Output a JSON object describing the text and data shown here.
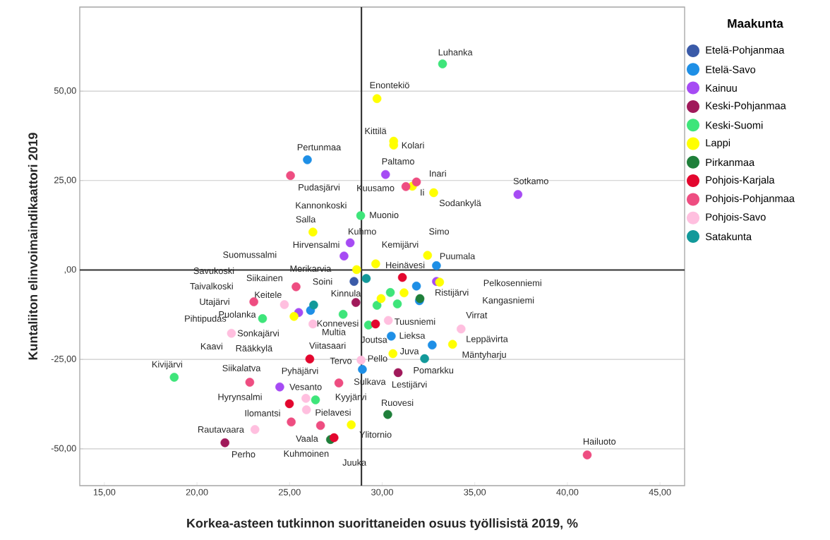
{
  "chart_data": {
    "type": "scatter",
    "xlabel": "Korkea-asteen tutkinnon suorittaneiden osuus työllisistä 2019, %",
    "ylabel": "Kuntaliiton elinvoimaindikaattori 2019",
    "legend_title": "Maakunta",
    "legend": "right",
    "marker": "circle",
    "grid": "y",
    "xlim": [
      13.67,
      46.33
    ],
    "ylim": [
      -60.3,
      73.5
    ],
    "xticks": [
      {
        "value": 15,
        "label": "15,00"
      },
      {
        "value": 20,
        "label": "20,00"
      },
      {
        "value": 25,
        "label": "25,00"
      },
      {
        "value": 30,
        "label": "30,00"
      },
      {
        "value": 35,
        "label": "35,00"
      },
      {
        "value": 40,
        "label": "40,00"
      },
      {
        "value": 45,
        "label": "45,00"
      }
    ],
    "yticks": [
      {
        "value": -50,
        "label": "-50,00"
      },
      {
        "value": -25,
        "label": "-25,00"
      },
      {
        "value": 0,
        "label": ",00"
      },
      {
        "value": 25,
        "label": "25,00"
      },
      {
        "value": 50,
        "label": "50,00"
      }
    ],
    "ref_lines": [
      {
        "axis": "x",
        "value": 28.88,
        "color": "#333333"
      },
      {
        "axis": "y",
        "value": 0,
        "color": "#333333"
      }
    ],
    "series": [
      {
        "name": "Etelä-Pohjanmaa",
        "color": "#3a5aa8",
        "x": [
          28.48
        ],
        "values": [
          -3.2
        ]
      },
      {
        "name": "Etelä-Savo",
        "color": "#1e8fe6",
        "x": [
          25.96,
          32.93,
          31.85,
          32.01,
          26.13,
          30.49,
          32.7,
          28.93
        ],
        "values": [
          30.8,
          1.2,
          -4.5,
          -8.6,
          -11.3,
          -18.5,
          -21.0,
          -27.8
        ]
      },
      {
        "name": "Kainuu",
        "color": "#a64bf4",
        "x": [
          30.18,
          37.33,
          28.27,
          27.94,
          25.49,
          24.47,
          32.93
        ],
        "values": [
          26.7,
          21.1,
          7.6,
          3.9,
          -11.9,
          -32.7,
          -3.2
        ]
      },
      {
        "name": "Keski-Pohjanmaa",
        "color": "#a0195a",
        "x": [
          28.58,
          30.86,
          21.51
        ],
        "values": [
          -9.1,
          -28.7,
          -48.3
        ]
      },
      {
        "name": "Keski-Suomi",
        "color": "#3ee57a",
        "x": [
          33.26,
          28.84,
          18.77,
          23.54,
          30.44,
          30.82,
          29.72,
          27.89,
          29.26,
          26.4
        ],
        "values": [
          57.6,
          15.2,
          -30.0,
          -13.6,
          -6.3,
          -9.5,
          -9.9,
          -12.4,
          -15.4,
          -36.3
        ]
      },
      {
        "name": "Lappi",
        "color": "#ffff00",
        "x": [
          29.72,
          30.62,
          30.62,
          32.78,
          31.63,
          26.26,
          29.65,
          28.62,
          32.45,
          33.1,
          31.18,
          29.94,
          25.24,
          30.58,
          33.8,
          28.33
        ],
        "values": [
          47.9,
          36.0,
          34.9,
          21.6,
          23.4,
          10.6,
          1.7,
          0.1,
          4.1,
          -3.4,
          -6.4,
          -8.0,
          -13.0,
          -23.4,
          -20.8,
          -43.3
        ]
      },
      {
        "name": "Pirkanmaa",
        "color": "#1f7f3a",
        "x": [
          32.04,
          30.3,
          27.21
        ],
        "values": [
          -8.0,
          -40.4,
          -47.4
        ]
      },
      {
        "name": "Pohjois-Karjala",
        "color": "#e3062e",
        "x": [
          31.09,
          29.64,
          26.09,
          24.99,
          27.4
        ],
        "values": [
          -2.1,
          -15.1,
          -24.9,
          -37.4,
          -46.9
        ]
      },
      {
        "name": "Pohjois-Pohjanmaa",
        "color": "#ee4d81",
        "x": [
          25.05,
          31.28,
          31.85,
          25.35,
          23.07,
          22.85,
          27.66,
          25.09,
          26.67,
          41.07
        ],
        "values": [
          26.4,
          23.3,
          24.6,
          -4.7,
          -8.9,
          -31.4,
          -31.6,
          -42.5,
          -43.5,
          -51.7
        ]
      },
      {
        "name": "Pohjois-Savo",
        "color": "#ffbfdf",
        "x": [
          24.72,
          21.86,
          26.26,
          30.33,
          34.26,
          28.86,
          25.88,
          25.91,
          23.13
        ],
        "values": [
          -9.7,
          -17.7,
          -15.1,
          -14.1,
          -16.5,
          -25.2,
          -35.9,
          -39.1,
          -44.6
        ]
      },
      {
        "name": "Satakunta",
        "color": "#12999a",
        "x": [
          29.14,
          26.3,
          32.29
        ],
        "values": [
          -2.4,
          -9.8,
          -24.8
        ]
      }
    ],
    "annotations": [
      "Luhanka",
      "Enontekiö",
      "Kittilä",
      "Kolari",
      "Pertunmaa",
      "Paltamo",
      "Inari",
      "Sotkamo",
      "Pudasjärvi",
      "Kuusamo",
      "Ii",
      "Sodankylä",
      "Kannonkoski",
      "Muonio",
      "Salla",
      "Simo",
      "Kuhmo",
      "Hirvensalmi",
      "Kemijärvi",
      "Suomussalmi",
      "Puumala",
      "Heinävesi",
      "Savukoski",
      "Merikarvia",
      "Siikainen",
      "Soini",
      "Pelkosenniemi",
      "Taivalkoski",
      "Keitele",
      "Ristijärvi",
      "Kinnula",
      "Kangasniemi",
      "Utajärvi",
      "Konnevesi",
      "Virrat",
      "Pihtipudas",
      "Puolanka",
      "Tuusniemi",
      "Multia",
      "Sonkajärvi",
      "Lieksa",
      "Leppävirta",
      "Joutsa",
      "Kaavi",
      "Viitasaari",
      "Rääkkylä",
      "Juva",
      "Mäntyharju",
      "Tervo",
      "Pello",
      "Kivijärvi",
      "Pyhäjärvi",
      "Siikalatva",
      "Pomarkku",
      "Sulkava",
      "Lestijärvi",
      "Vesanto",
      "Hyrynsalmi",
      "Kyyjärvi",
      "Ruovesi",
      "Ilomantsi",
      "Pielavesi",
      "Rautavaara",
      "Ylitornio",
      "Vaala",
      "Hailuoto",
      "Perho",
      "Kuhmoinen",
      "Juuka"
    ]
  }
}
